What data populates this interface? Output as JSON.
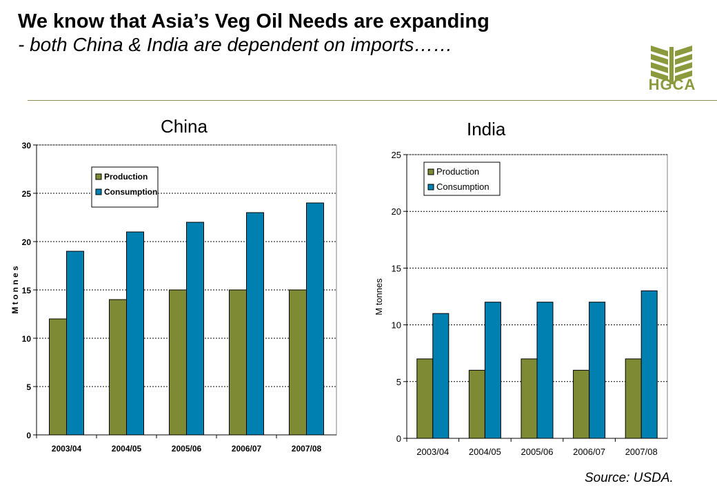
{
  "header": {
    "title": "We know that Asia’s Veg Oil Needs are expanding",
    "subtitle": "- both China & India are dependent on imports……",
    "logo_text": "HGCA"
  },
  "source": "Source: USDA.",
  "colors": {
    "production": "#7f8a34",
    "consumption": "#0080b0",
    "logo": "#8b9a3c"
  },
  "chart_data": [
    {
      "type": "bar",
      "title": "China",
      "categories": [
        "2003/04",
        "2004/05",
        "2005/06",
        "2006/07",
        "2007/08"
      ],
      "series": [
        {
          "name": "Production",
          "values": [
            12,
            14,
            15,
            15,
            15
          ]
        },
        {
          "name": "Consumption",
          "values": [
            19,
            21,
            22,
            23,
            24
          ]
        }
      ],
      "ylabel": "M t o n n e s",
      "ylim": [
        0,
        30
      ],
      "yticks": [
        0,
        5,
        10,
        15,
        20,
        25,
        30
      ],
      "grid": true,
      "legend": "top-left"
    },
    {
      "type": "bar",
      "title": "India",
      "categories": [
        "2003/04",
        "2004/05",
        "2005/06",
        "2006/07",
        "2007/08"
      ],
      "series": [
        {
          "name": "Production",
          "values": [
            7,
            6,
            7,
            6,
            7
          ]
        },
        {
          "name": "Consumption",
          "values": [
            11,
            12,
            12,
            12,
            13
          ]
        }
      ],
      "ylabel": "M tonnes",
      "ylim": [
        0,
        25
      ],
      "yticks": [
        0,
        5,
        10,
        15,
        20,
        25
      ],
      "grid": true,
      "legend": "top-left"
    }
  ]
}
